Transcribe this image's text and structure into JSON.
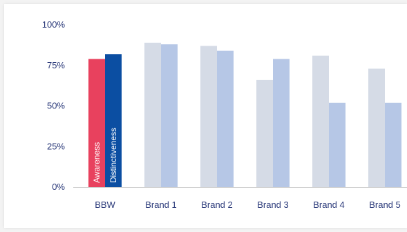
{
  "chart_data": {
    "type": "bar",
    "categories": [
      "BBW",
      "Brand 1",
      "Brand 2",
      "Brand 3",
      "Brand 4",
      "Brand 5"
    ],
    "series": [
      {
        "name": "Awareness",
        "values": [
          79,
          89,
          87,
          66,
          81,
          73
        ],
        "colors": [
          "#e8415e",
          "#d5dbe6",
          "#d5dbe6",
          "#d5dbe6",
          "#d5dbe6",
          "#d5dbe6"
        ]
      },
      {
        "name": "Distinctiveness",
        "values": [
          82,
          88,
          84,
          79,
          52,
          52
        ],
        "colors": [
          "#0b4ea2",
          "#b6c7e6",
          "#b6c7e6",
          "#b6c7e6",
          "#b6c7e6",
          "#b6c7e6"
        ]
      }
    ],
    "ylim": [
      0,
      100
    ],
    "yticks": [
      0,
      25,
      50,
      75,
      100
    ],
    "ytick_labels": [
      "0%",
      "25%",
      "50%",
      "75%",
      "100%"
    ],
    "title": "",
    "xlabel": "",
    "ylabel": "",
    "grid": false,
    "legend": "none",
    "bar_labels": [
      "Awareness",
      "Distinctiveness"
    ],
    "axis_color": "#d0d0d0",
    "label_color": "#2b3a7a"
  }
}
